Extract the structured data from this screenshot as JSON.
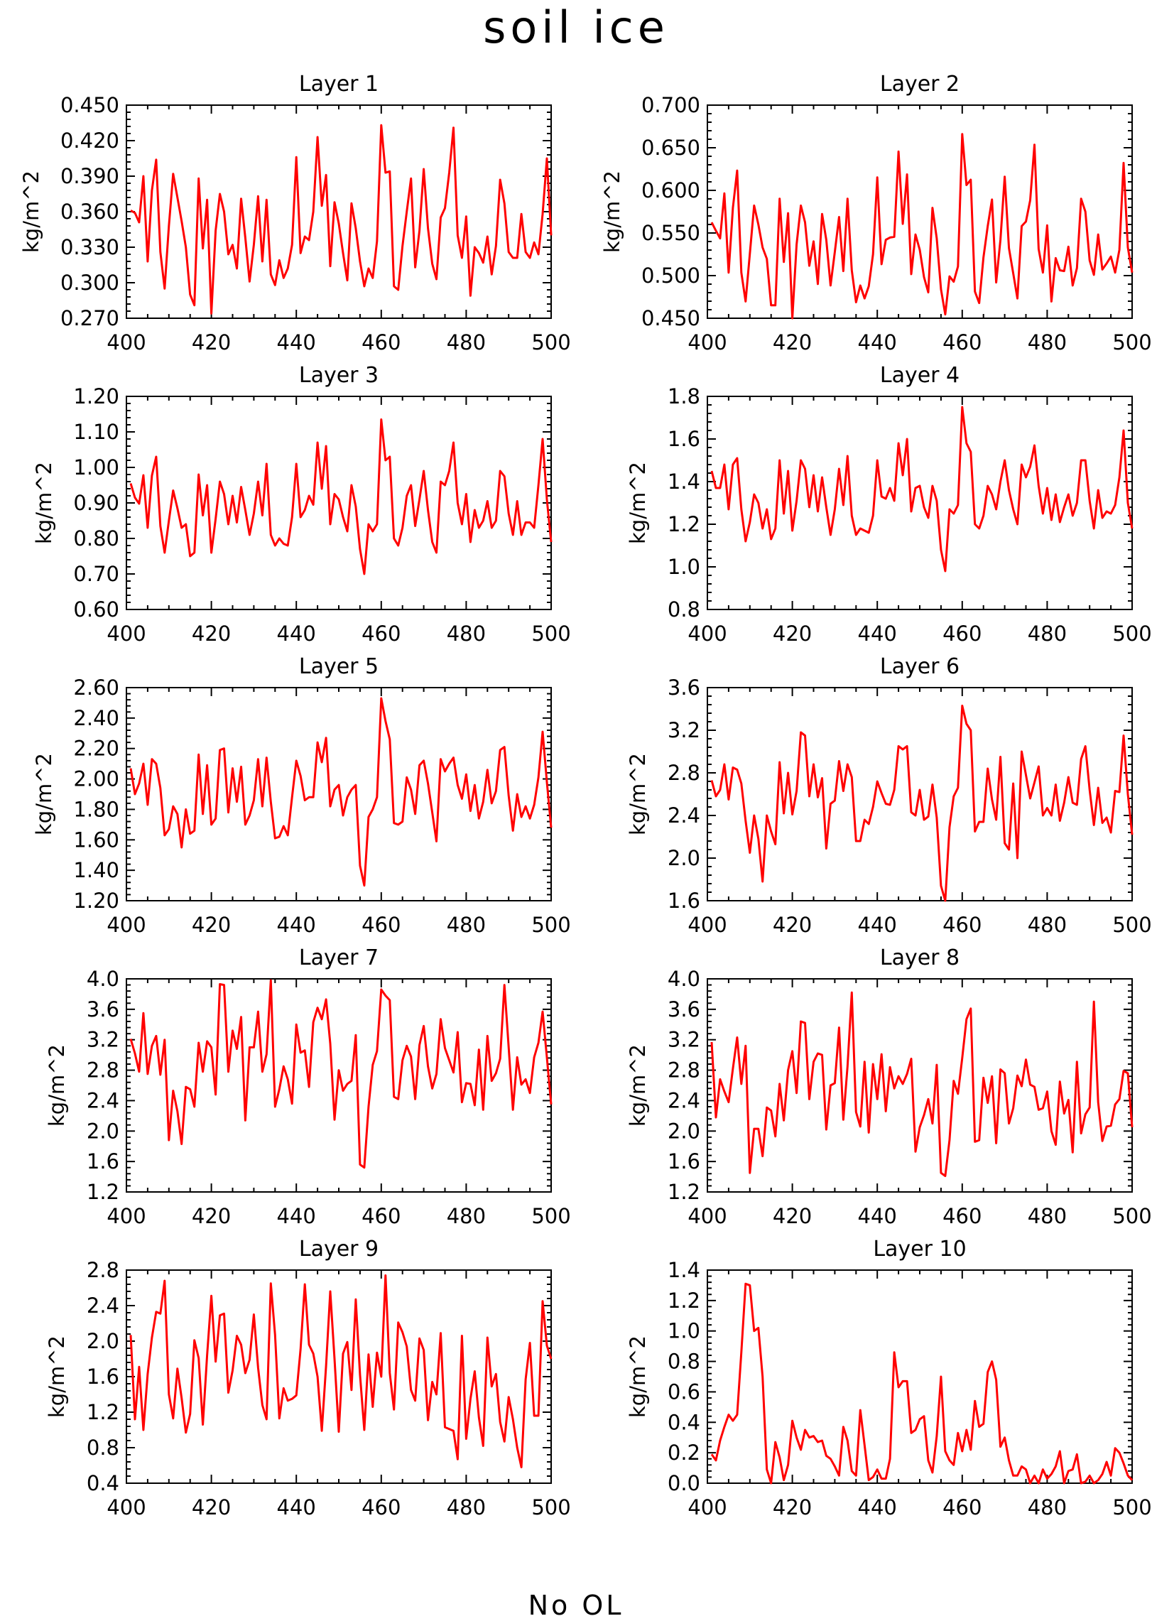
{
  "figure": {
    "title": "soil ice",
    "footer": "No OL"
  },
  "colors": {
    "line": "#ff0000",
    "axis": "#000000",
    "background": "#ffffff"
  },
  "chart_data": [
    {
      "type": "line",
      "title": "Layer 1",
      "ylabel": "kg/m^2",
      "xlim": [
        400,
        500
      ],
      "ylim": [
        0.27,
        0.45
      ],
      "xticks": [
        "400",
        "420",
        "440",
        "460",
        "480",
        "500"
      ],
      "yticks": [
        "0.270",
        "0.300",
        "0.330",
        "0.360",
        "0.390",
        "0.420",
        "0.450"
      ],
      "x_start": 401,
      "x_step": 1,
      "values": [
        0.361,
        0.359,
        0.351,
        0.39,
        0.318,
        0.378,
        0.404,
        0.326,
        0.295,
        0.348,
        0.392,
        0.372,
        0.352,
        0.33,
        0.29,
        0.281,
        0.388,
        0.329,
        0.37,
        0.274,
        0.344,
        0.375,
        0.36,
        0.324,
        0.332,
        0.312,
        0.371,
        0.338,
        0.301,
        0.332,
        0.373,
        0.318,
        0.37,
        0.307,
        0.298,
        0.319,
        0.304,
        0.312,
        0.332,
        0.406,
        0.325,
        0.339,
        0.336,
        0.36,
        0.423,
        0.365,
        0.391,
        0.314,
        0.368,
        0.35,
        0.325,
        0.302,
        0.367,
        0.346,
        0.318,
        0.297,
        0.312,
        0.304,
        0.335,
        0.433,
        0.393,
        0.394,
        0.297,
        0.294,
        0.331,
        0.36,
        0.388,
        0.313,
        0.344,
        0.396,
        0.346,
        0.316,
        0.303,
        0.355,
        0.363,
        0.393,
        0.431,
        0.34,
        0.321,
        0.356,
        0.289,
        0.33,
        0.325,
        0.317,
        0.339,
        0.307,
        0.331,
        0.387,
        0.367,
        0.326,
        0.321,
        0.321,
        0.358,
        0.326,
        0.321,
        0.334,
        0.324,
        0.358,
        0.405,
        0.34
      ]
    },
    {
      "type": "line",
      "title": "Layer 2",
      "ylabel": "kg/m^2",
      "xlim": [
        400,
        500
      ],
      "ylim": [
        0.44,
        0.72
      ],
      "xticks": [
        "400",
        "420",
        "440",
        "460",
        "480",
        "500"
      ],
      "yticks": [
        "0.450",
        "0.500",
        "0.550",
        "0.600",
        "0.650",
        "0.700"
      ],
      "x_start": 401,
      "x_step": 1,
      "values": [
        0.566,
        0.555,
        0.545,
        0.604,
        0.5,
        0.585,
        0.634,
        0.5,
        0.462,
        0.525,
        0.588,
        0.563,
        0.533,
        0.518,
        0.457,
        0.457,
        0.597,
        0.514,
        0.578,
        0.44,
        0.537,
        0.588,
        0.566,
        0.509,
        0.541,
        0.485,
        0.577,
        0.543,
        0.483,
        0.527,
        0.573,
        0.502,
        0.597,
        0.503,
        0.461,
        0.483,
        0.466,
        0.482,
        0.524,
        0.625,
        0.511,
        0.543,
        0.546,
        0.547,
        0.659,
        0.564,
        0.629,
        0.498,
        0.55,
        0.53,
        0.494,
        0.474,
        0.585,
        0.545,
        0.478,
        0.445,
        0.495,
        0.488,
        0.508,
        0.682,
        0.615,
        0.622,
        0.475,
        0.46,
        0.52,
        0.561,
        0.596,
        0.487,
        0.543,
        0.626,
        0.532,
        0.499,
        0.466,
        0.561,
        0.567,
        0.595,
        0.668,
        0.531,
        0.5,
        0.562,
        0.462,
        0.519,
        0.503,
        0.502,
        0.534,
        0.483,
        0.506,
        0.597,
        0.58,
        0.516,
        0.497,
        0.55,
        0.504,
        0.512,
        0.521,
        0.5,
        0.53,
        0.644,
        0.533,
        0.5
      ]
    },
    {
      "type": "line",
      "title": "Layer 3",
      "ylabel": "kg/m^2",
      "xlim": [
        400,
        500
      ],
      "ylim": [
        0.6,
        1.2
      ],
      "xticks": [
        "400",
        "420",
        "440",
        "460",
        "480",
        "500"
      ],
      "yticks": [
        "0.60",
        "0.70",
        "0.80",
        "0.90",
        "1.00",
        "1.10",
        "1.20"
      ],
      "x_start": 401,
      "x_step": 1,
      "values": [
        0.955,
        0.915,
        0.898,
        0.978,
        0.83,
        0.977,
        1.03,
        0.835,
        0.76,
        0.85,
        0.935,
        0.885,
        0.83,
        0.84,
        0.75,
        0.76,
        0.98,
        0.865,
        0.95,
        0.76,
        0.855,
        0.96,
        0.925,
        0.84,
        0.92,
        0.845,
        0.945,
        0.88,
        0.81,
        0.87,
        0.96,
        0.865,
        1.01,
        0.81,
        0.78,
        0.8,
        0.785,
        0.78,
        0.86,
        1.01,
        0.86,
        0.88,
        0.92,
        0.895,
        1.07,
        0.94,
        1.06,
        0.84,
        0.925,
        0.91,
        0.86,
        0.82,
        0.95,
        0.89,
        0.77,
        0.7,
        0.84,
        0.82,
        0.84,
        1.135,
        1.02,
        1.03,
        0.8,
        0.78,
        0.83,
        0.92,
        0.95,
        0.835,
        0.91,
        0.99,
        0.88,
        0.79,
        0.76,
        0.96,
        0.95,
        0.99,
        1.07,
        0.9,
        0.84,
        0.925,
        0.79,
        0.88,
        0.83,
        0.85,
        0.905,
        0.83,
        0.85,
        0.99,
        0.975,
        0.87,
        0.81,
        0.905,
        0.81,
        0.845,
        0.845,
        0.83,
        0.95,
        1.08,
        0.91,
        0.79
      ]
    },
    {
      "type": "line",
      "title": "Layer 4",
      "ylabel": "kg/m^2",
      "xlim": [
        400,
        500
      ],
      "ylim": [
        0.8,
        1.8
      ],
      "xticks": [
        "400",
        "420",
        "440",
        "460",
        "480",
        "500"
      ],
      "yticks": [
        "0.8",
        "1.0",
        "1.2",
        "1.4",
        "1.6",
        "1.8"
      ],
      "x_start": 401,
      "x_step": 1,
      "values": [
        1.45,
        1.37,
        1.37,
        1.48,
        1.27,
        1.48,
        1.51,
        1.27,
        1.12,
        1.21,
        1.34,
        1.3,
        1.18,
        1.27,
        1.13,
        1.18,
        1.5,
        1.25,
        1.45,
        1.17,
        1.31,
        1.5,
        1.46,
        1.28,
        1.43,
        1.26,
        1.42,
        1.28,
        1.15,
        1.27,
        1.46,
        1.29,
        1.52,
        1.24,
        1.15,
        1.18,
        1.17,
        1.16,
        1.24,
        1.5,
        1.33,
        1.32,
        1.37,
        1.31,
        1.58,
        1.43,
        1.6,
        1.26,
        1.37,
        1.38,
        1.28,
        1.23,
        1.38,
        1.31,
        1.08,
        0.98,
        1.27,
        1.25,
        1.29,
        1.75,
        1.58,
        1.54,
        1.2,
        1.18,
        1.24,
        1.38,
        1.34,
        1.27,
        1.4,
        1.5,
        1.36,
        1.27,
        1.2,
        1.48,
        1.42,
        1.47,
        1.57,
        1.38,
        1.25,
        1.37,
        1.22,
        1.34,
        1.21,
        1.28,
        1.34,
        1.24,
        1.3,
        1.5,
        1.5,
        1.31,
        1.18,
        1.36,
        1.23,
        1.26,
        1.25,
        1.29,
        1.42,
        1.64,
        1.3,
        1.18
      ]
    },
    {
      "type": "line",
      "title": "Layer 5",
      "ylabel": "kg/m^2",
      "xlim": [
        400,
        500
      ],
      "ylim": [
        1.2,
        2.6
      ],
      "xticks": [
        "400",
        "420",
        "440",
        "460",
        "480",
        "500"
      ],
      "yticks": [
        "1.20",
        "1.40",
        "1.60",
        "1.80",
        "2.00",
        "2.20",
        "2.40",
        "2.60"
      ],
      "x_start": 401,
      "x_step": 1,
      "values": [
        2.07,
        1.9,
        1.97,
        2.1,
        1.83,
        2.13,
        2.1,
        1.94,
        1.63,
        1.67,
        1.82,
        1.77,
        1.55,
        1.8,
        1.64,
        1.66,
        2.16,
        1.77,
        2.09,
        1.7,
        1.74,
        2.19,
        2.2,
        1.78,
        2.07,
        1.85,
        2.08,
        1.7,
        1.76,
        1.86,
        2.13,
        1.82,
        2.14,
        1.85,
        1.61,
        1.62,
        1.69,
        1.63,
        1.88,
        2.12,
        2.02,
        1.86,
        1.88,
        1.88,
        2.24,
        2.11,
        2.27,
        1.82,
        1.93,
        1.96,
        1.76,
        1.88,
        1.93,
        1.96,
        1.43,
        1.3,
        1.75,
        1.8,
        1.88,
        2.53,
        2.38,
        2.26,
        1.71,
        1.7,
        1.72,
        2.01,
        1.93,
        1.77,
        2.09,
        2.12,
        1.97,
        1.78,
        1.59,
        2.13,
        2.05,
        2.1,
        2.14,
        1.96,
        1.87,
        2.03,
        1.79,
        1.96,
        1.74,
        1.85,
        2.06,
        1.84,
        1.92,
        2.19,
        2.21,
        1.89,
        1.66,
        1.9,
        1.75,
        1.82,
        1.74,
        1.83,
        2.01,
        2.31,
        1.98,
        1.68
      ]
    },
    {
      "type": "line",
      "title": "Layer 6",
      "ylabel": "kg/m^2",
      "xlim": [
        400,
        500
      ],
      "ylim": [
        1.6,
        3.6
      ],
      "xticks": [
        "400",
        "420",
        "440",
        "460",
        "480",
        "500"
      ],
      "yticks": [
        "1.6",
        "2.0",
        "2.4",
        "2.8",
        "3.2",
        "3.6"
      ],
      "x_start": 401,
      "x_step": 1,
      "values": [
        2.73,
        2.58,
        2.64,
        2.88,
        2.55,
        2.85,
        2.83,
        2.7,
        2.35,
        2.05,
        2.4,
        2.18,
        1.78,
        2.4,
        2.25,
        2.13,
        2.9,
        2.42,
        2.8,
        2.41,
        2.63,
        3.18,
        3.15,
        2.58,
        2.88,
        2.57,
        2.75,
        2.09,
        2.51,
        2.54,
        2.91,
        2.63,
        2.88,
        2.76,
        2.16,
        2.16,
        2.36,
        2.32,
        2.48,
        2.72,
        2.61,
        2.51,
        2.5,
        2.64,
        3.05,
        3.02,
        3.05,
        2.43,
        2.4,
        2.64,
        2.36,
        2.39,
        2.69,
        2.38,
        1.74,
        1.58,
        2.29,
        2.58,
        2.66,
        3.43,
        3.26,
        3.2,
        2.25,
        2.34,
        2.34,
        2.84,
        2.55,
        2.36,
        2.95,
        2.14,
        2.08,
        2.7,
        2.0,
        3.0,
        2.78,
        2.56,
        2.71,
        2.86,
        2.4,
        2.47,
        2.4,
        2.69,
        2.35,
        2.52,
        2.76,
        2.52,
        2.5,
        2.93,
        3.05,
        2.64,
        2.31,
        2.66,
        2.33,
        2.38,
        2.24,
        2.63,
        2.62,
        3.15,
        2.6,
        2.22
      ]
    },
    {
      "type": "line",
      "title": "Layer 7",
      "ylabel": "kg/m^2",
      "xlim": [
        400,
        500
      ],
      "ylim": [
        1.2,
        4.0
      ],
      "xticks": [
        "400",
        "420",
        "440",
        "460",
        "480",
        "500"
      ],
      "yticks": [
        "1.2",
        "1.6",
        "2.0",
        "2.4",
        "2.8",
        "3.2",
        "3.6",
        "4.0"
      ],
      "x_start": 401,
      "x_step": 1,
      "values": [
        3.21,
        3.02,
        2.78,
        3.55,
        2.75,
        3.12,
        3.25,
        2.74,
        3.2,
        1.88,
        2.53,
        2.26,
        1.83,
        2.58,
        2.55,
        2.32,
        3.16,
        2.78,
        3.18,
        3.1,
        2.48,
        3.93,
        3.92,
        2.78,
        3.32,
        3.08,
        3.5,
        2.14,
        3.1,
        3.1,
        3.57,
        2.78,
        3.01,
        3.98,
        2.32,
        2.55,
        2.85,
        2.68,
        2.36,
        3.4,
        3.03,
        3.06,
        2.58,
        3.43,
        3.62,
        3.47,
        3.73,
        3.15,
        2.15,
        2.8,
        2.53,
        2.62,
        2.66,
        3.26,
        1.56,
        1.52,
        2.32,
        2.87,
        3.05,
        3.86,
        3.78,
        3.72,
        2.45,
        2.42,
        2.93,
        3.12,
        2.98,
        2.42,
        3.13,
        3.38,
        2.85,
        2.56,
        2.75,
        3.47,
        3.09,
        2.93,
        2.77,
        3.3,
        2.38,
        2.63,
        2.62,
        2.34,
        3.07,
        2.28,
        3.25,
        2.66,
        2.76,
        2.95,
        3.92,
        3.1,
        2.28,
        2.97,
        2.61,
        2.68,
        2.5,
        2.97,
        3.16,
        3.57,
        2.97,
        2.35
      ]
    },
    {
      "type": "line",
      "title": "Layer 8",
      "ylabel": "kg/m^2",
      "xlim": [
        400,
        500
      ],
      "ylim": [
        1.2,
        4.0
      ],
      "xticks": [
        "400",
        "420",
        "440",
        "460",
        "480",
        "500"
      ],
      "yticks": [
        "1.2",
        "1.6",
        "2.0",
        "2.4",
        "2.8",
        "3.2",
        "3.6",
        "4.0"
      ],
      "x_start": 401,
      "x_step": 1,
      "values": [
        3.17,
        2.18,
        2.68,
        2.52,
        2.38,
        2.82,
        3.23,
        2.62,
        3.12,
        1.45,
        2.03,
        2.03,
        1.67,
        2.31,
        2.27,
        1.93,
        2.62,
        2.14,
        2.8,
        3.05,
        2.5,
        3.44,
        3.42,
        2.42,
        2.91,
        3.02,
        3.0,
        2.02,
        2.6,
        2.63,
        3.36,
        2.15,
        2.85,
        3.82,
        2.25,
        2.06,
        2.91,
        1.98,
        2.88,
        2.42,
        3.01,
        2.26,
        2.84,
        2.56,
        2.72,
        2.62,
        2.75,
        2.95,
        1.73,
        2.05,
        2.21,
        2.42,
        2.1,
        2.87,
        1.45,
        1.41,
        1.88,
        2.66,
        2.49,
        2.96,
        3.47,
        3.61,
        1.86,
        1.88,
        2.7,
        2.37,
        2.72,
        1.84,
        2.81,
        2.76,
        2.1,
        2.3,
        2.73,
        2.59,
        2.94,
        2.61,
        2.58,
        2.28,
        2.3,
        2.52,
        2.0,
        1.82,
        2.65,
        2.23,
        2.41,
        1.72,
        2.91,
        1.97,
        2.22,
        2.31,
        3.7,
        2.38,
        1.87,
        2.06,
        2.07,
        2.35,
        2.42,
        2.79,
        2.76,
        2.05
      ]
    },
    {
      "type": "line",
      "title": "Layer 9",
      "ylabel": "kg/m^2",
      "xlim": [
        400,
        500
      ],
      "ylim": [
        0.4,
        2.8
      ],
      "xticks": [
        "400",
        "420",
        "440",
        "460",
        "480",
        "500"
      ],
      "yticks": [
        "0.4",
        "0.8",
        "1.2",
        "1.6",
        "2.0",
        "2.4",
        "2.8"
      ],
      "x_start": 401,
      "x_step": 1,
      "values": [
        2.07,
        1.12,
        1.71,
        1.0,
        1.63,
        2.04,
        2.33,
        2.31,
        2.68,
        1.4,
        1.13,
        1.69,
        1.36,
        0.97,
        1.18,
        2.01,
        1.81,
        1.06,
        1.84,
        2.51,
        1.77,
        2.29,
        2.31,
        1.42,
        1.67,
        2.06,
        1.96,
        1.64,
        1.79,
        2.3,
        1.7,
        1.28,
        1.12,
        2.65,
        2.07,
        1.13,
        1.47,
        1.33,
        1.35,
        1.39,
        1.91,
        2.64,
        1.96,
        1.86,
        1.6,
        0.99,
        1.72,
        2.56,
        1.8,
        0.98,
        1.86,
        1.99,
        1.45,
        2.47,
        1.62,
        1.0,
        1.85,
        1.26,
        1.87,
        1.6,
        2.74,
        1.64,
        1.23,
        2.21,
        2.1,
        1.94,
        1.45,
        1.33,
        2.03,
        1.9,
        1.11,
        1.54,
        1.4,
        2.09,
        1.03,
        1.01,
        0.99,
        0.67,
        2.06,
        0.9,
        1.35,
        1.66,
        1.14,
        0.82,
        2.04,
        1.49,
        1.63,
        1.09,
        0.87,
        1.37,
        1.12,
        0.8,
        0.58,
        1.57,
        1.98,
        1.16,
        1.16,
        2.45,
        1.95,
        1.8
      ]
    },
    {
      "type": "line",
      "title": "Layer 10",
      "ylabel": "kg/m^2",
      "xlim": [
        400,
        500
      ],
      "ylim": [
        0.0,
        1.4
      ],
      "xticks": [
        "400",
        "420",
        "440",
        "460",
        "480",
        "500"
      ],
      "yticks": [
        "0.0",
        "0.2",
        "0.4",
        "0.6",
        "0.8",
        "1.0",
        "1.2",
        "1.4"
      ],
      "x_start": 401,
      "x_step": 1,
      "values": [
        0.19,
        0.15,
        0.28,
        0.37,
        0.45,
        0.41,
        0.45,
        0.86,
        1.31,
        1.3,
        1.0,
        1.02,
        0.7,
        0.09,
        0.0,
        0.27,
        0.17,
        0.02,
        0.12,
        0.41,
        0.3,
        0.22,
        0.35,
        0.3,
        0.31,
        0.27,
        0.28,
        0.18,
        0.16,
        0.11,
        0.05,
        0.37,
        0.28,
        0.08,
        0.05,
        0.48,
        0.25,
        0.02,
        0.04,
        0.09,
        0.03,
        0.03,
        0.16,
        0.86,
        0.63,
        0.67,
        0.67,
        0.33,
        0.35,
        0.42,
        0.44,
        0.15,
        0.07,
        0.31,
        0.7,
        0.21,
        0.15,
        0.12,
        0.33,
        0.21,
        0.35,
        0.22,
        0.54,
        0.37,
        0.39,
        0.73,
        0.8,
        0.68,
        0.24,
        0.3,
        0.15,
        0.05,
        0.05,
        0.11,
        0.09,
        0.0,
        0.05,
        0.0,
        0.09,
        0.03,
        0.06,
        0.11,
        0.21,
        0.0,
        0.08,
        0.09,
        0.19,
        0.0,
        0.01,
        0.05,
        0.0,
        0.02,
        0.06,
        0.14,
        0.05,
        0.23,
        0.2,
        0.13,
        0.05,
        0.02
      ]
    }
  ]
}
